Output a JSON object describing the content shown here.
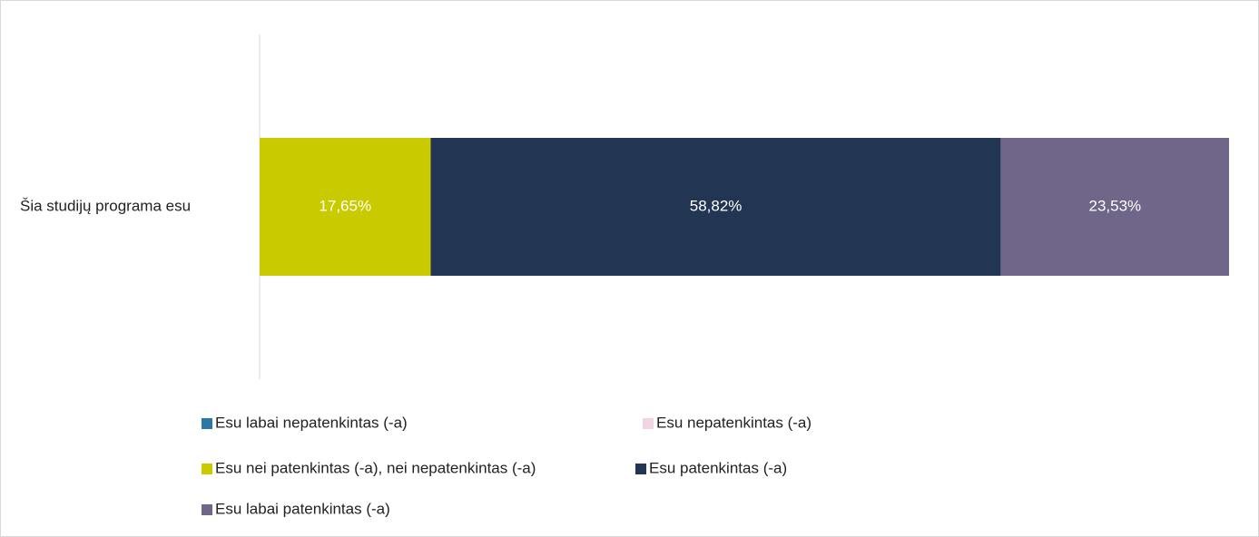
{
  "chart_data": {
    "type": "stacked-bar-horizontal",
    "categories": [
      "Šia studijų programa esu"
    ],
    "xlim": [
      0,
      100
    ],
    "series": [
      {
        "name": "Esu labai nepatenkintas (-a)",
        "color": "#2b78a6",
        "values": [
          0
        ],
        "value_labels": [
          "0%"
        ]
      },
      {
        "name": "Esu nepatenkintas (-a)",
        "color": "#f1d3e3",
        "values": [
          0
        ],
        "value_labels": [
          "0%"
        ]
      },
      {
        "name": "Esu nei patenkintas (-a), nei nepatenkintas (-a)",
        "color": "#c9cb00",
        "values": [
          17.65
        ],
        "value_labels": [
          "17,65%"
        ]
      },
      {
        "name": "Esu patenkintas (-a)",
        "color": "#223654",
        "values": [
          58.82
        ],
        "value_labels": [
          "58,82%"
        ]
      },
      {
        "name": "Esu labai patenkintas (-a)",
        "color": "#6f668a",
        "values": [
          23.53
        ],
        "value_labels": [
          "23,53%"
        ]
      }
    ],
    "legend": "bottom"
  }
}
